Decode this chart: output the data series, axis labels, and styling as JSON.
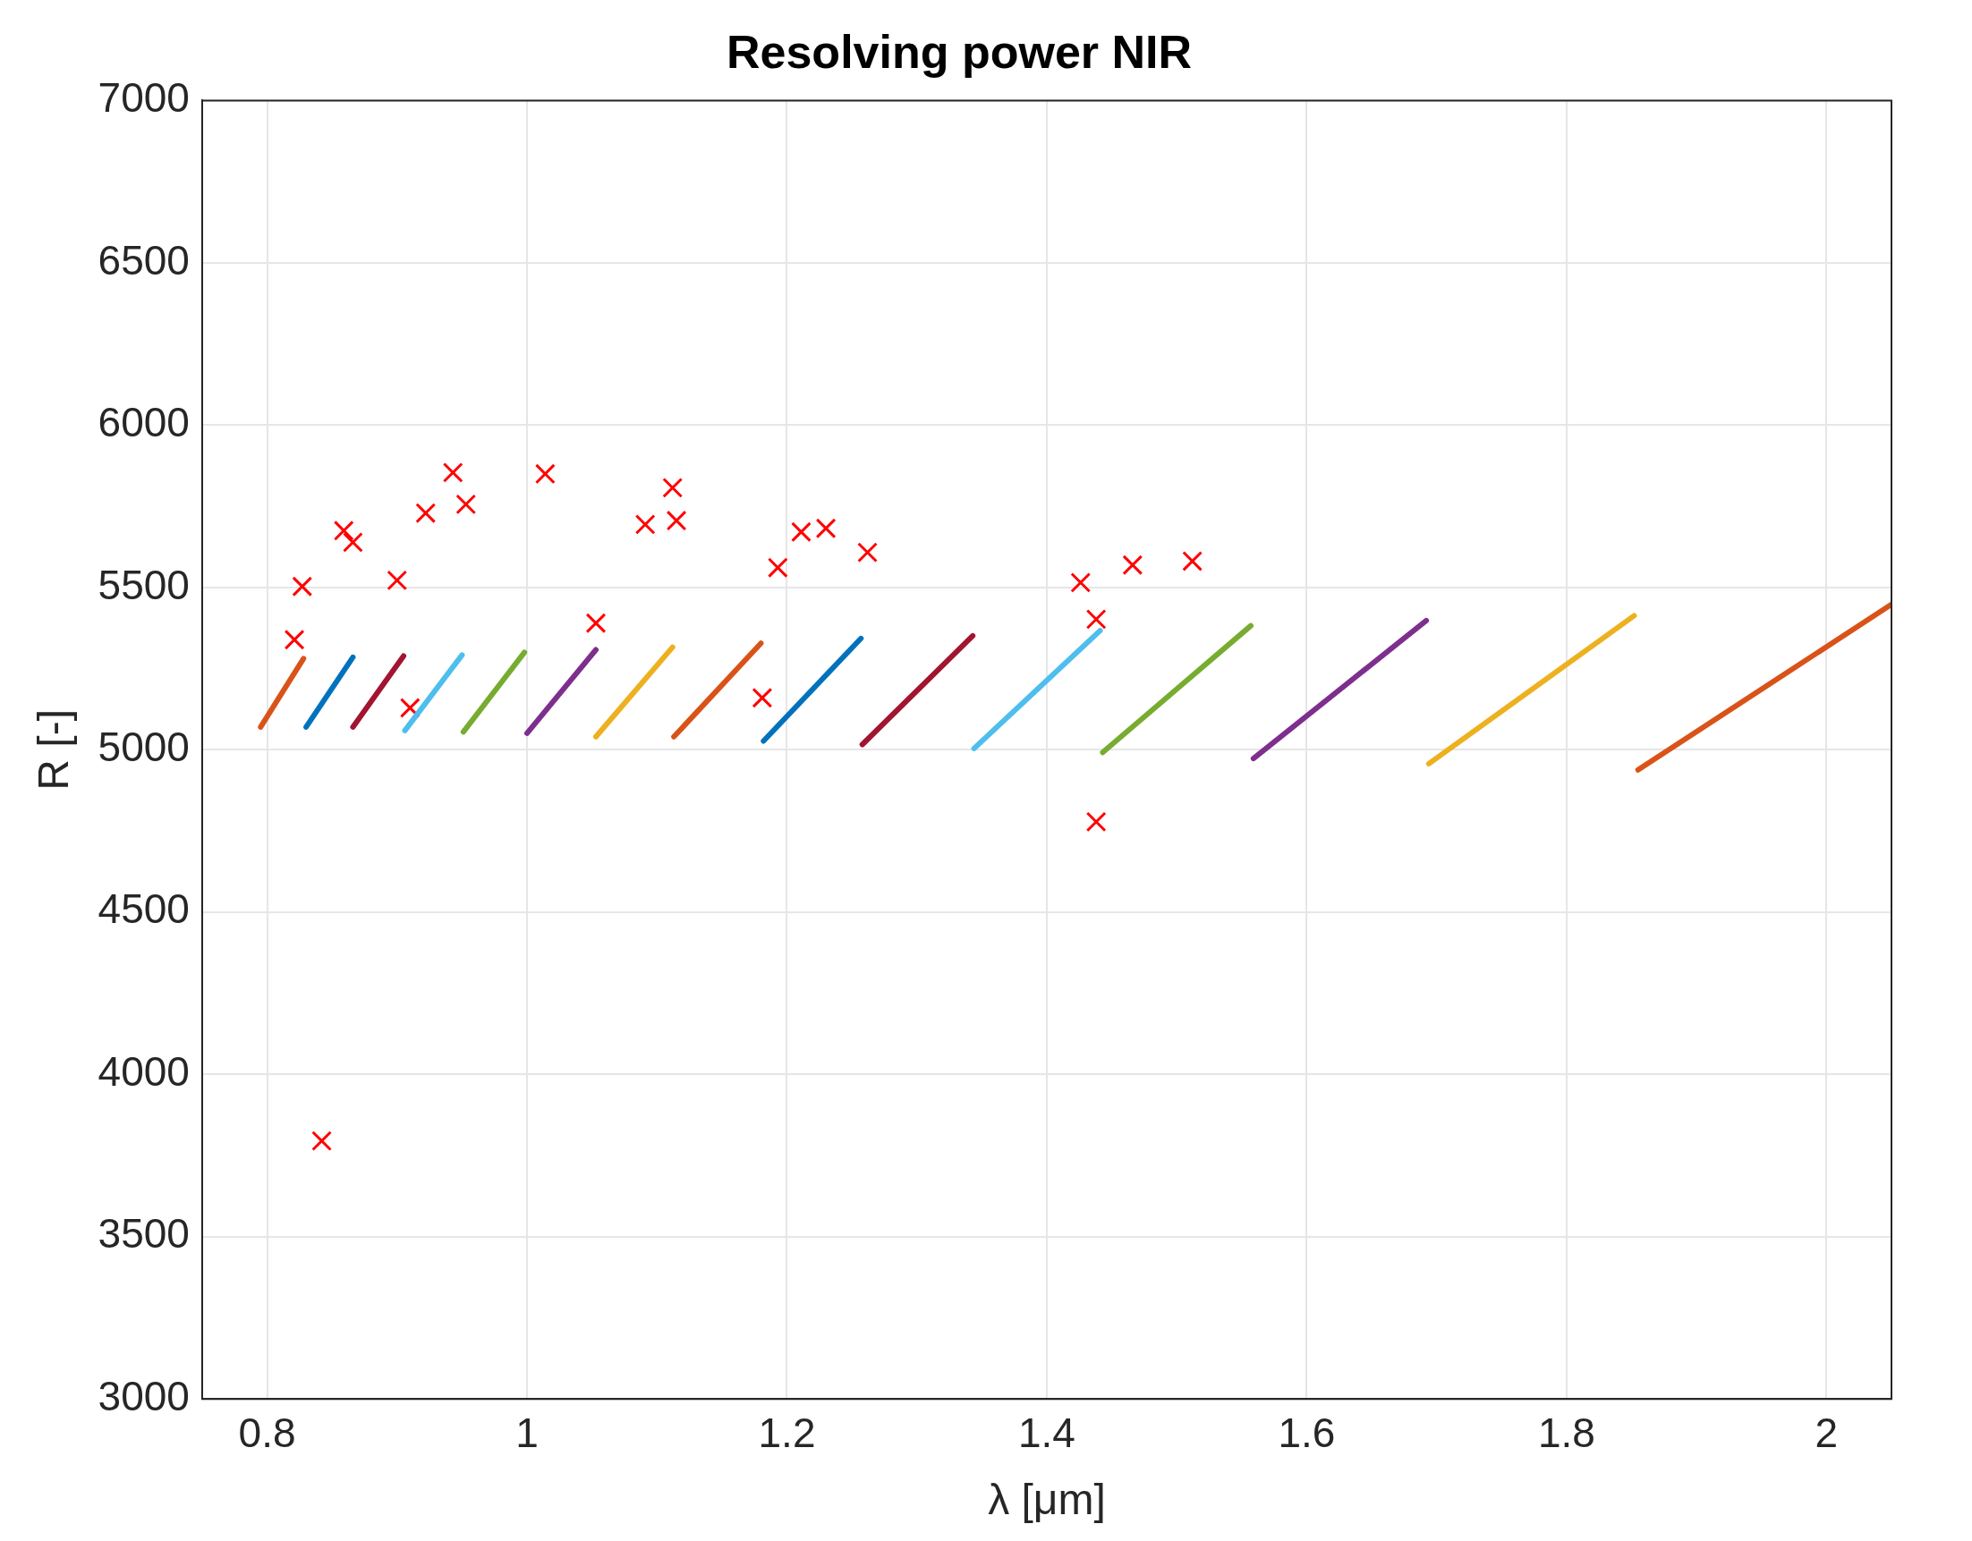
{
  "chart_data": {
    "type": "line",
    "title": "Resolving power NIR",
    "xlabel": "λ [μm]",
    "ylabel": "R [-]",
    "xlim": [
      0.75,
      2.05
    ],
    "xticks": [
      0.8,
      1,
      1.2,
      1.4,
      1.6,
      1.8,
      2
    ],
    "ylim": [
      3000,
      7000
    ],
    "yticks": [
      3000,
      3500,
      4000,
      4500,
      5000,
      5500,
      6000,
      6500,
      7000
    ],
    "grid": true,
    "legend": false,
    "line_style": "solid",
    "series": [
      {
        "color": "#d95319",
        "x": [
          0.795,
          0.828
        ],
        "values": [
          5070,
          5281
        ]
      },
      {
        "color": "#0072bd",
        "x": [
          0.83,
          0.866
        ],
        "values": [
          5070,
          5285
        ]
      },
      {
        "color": "#a2142f",
        "x": [
          0.866,
          0.905
        ],
        "values": [
          5070,
          5289
        ]
      },
      {
        "color": "#4dbeee",
        "x": [
          0.906,
          0.95
        ],
        "values": [
          5059,
          5292
        ]
      },
      {
        "color": "#77ac30",
        "x": [
          0.951,
          0.998
        ],
        "values": [
          5055,
          5300
        ]
      },
      {
        "color": "#7e2f8e",
        "x": [
          1.0,
          1.053
        ],
        "values": [
          5051,
          5308
        ]
      },
      {
        "color": "#edb120",
        "x": [
          1.053,
          1.112
        ],
        "values": [
          5040,
          5316
        ]
      },
      {
        "color": "#d95319",
        "x": [
          1.113,
          1.18
        ],
        "values": [
          5040,
          5328
        ]
      },
      {
        "color": "#0072bd",
        "x": [
          1.182,
          1.257
        ],
        "values": [
          5027,
          5343
        ]
      },
      {
        "color": "#a2142f",
        "x": [
          1.258,
          1.343
        ],
        "values": [
          5016,
          5351
        ]
      },
      {
        "color": "#4dbeee",
        "x": [
          1.344,
          1.441
        ],
        "values": [
          5004,
          5367
        ]
      },
      {
        "color": "#77ac30",
        "x": [
          1.443,
          1.557
        ],
        "values": [
          4992,
          5382
        ]
      },
      {
        "color": "#7e2f8e",
        "x": [
          1.559,
          1.692
        ],
        "values": [
          4973,
          5398
        ]
      },
      {
        "color": "#edb120",
        "x": [
          1.694,
          1.852
        ],
        "values": [
          4957,
          5413
        ]
      },
      {
        "color": "#d95319",
        "x": [
          1.855,
          2.05
        ],
        "values": [
          4938,
          5448
        ]
      },
      {
        "type": "scatter",
        "marker": "cross",
        "color": "#ff0000",
        "x": [
          0.821,
          0.827,
          0.859,
          0.866,
          0.9,
          0.91,
          0.922,
          0.943,
          0.953,
          1.014,
          1.053,
          1.091,
          1.112,
          1.115,
          1.181,
          1.193,
          1.211,
          1.23,
          1.262,
          1.426,
          1.438,
          1.438,
          1.466,
          1.512,
          0.842
        ],
        "values": [
          5339,
          5503,
          5675,
          5639,
          5522,
          5129,
          5729,
          5854,
          5756,
          5850,
          5390,
          5694,
          5807,
          5706,
          5160,
          5561,
          5671,
          5682,
          5608,
          5515,
          5402,
          4778,
          5569,
          5581,
          3795
        ]
      }
    ]
  }
}
